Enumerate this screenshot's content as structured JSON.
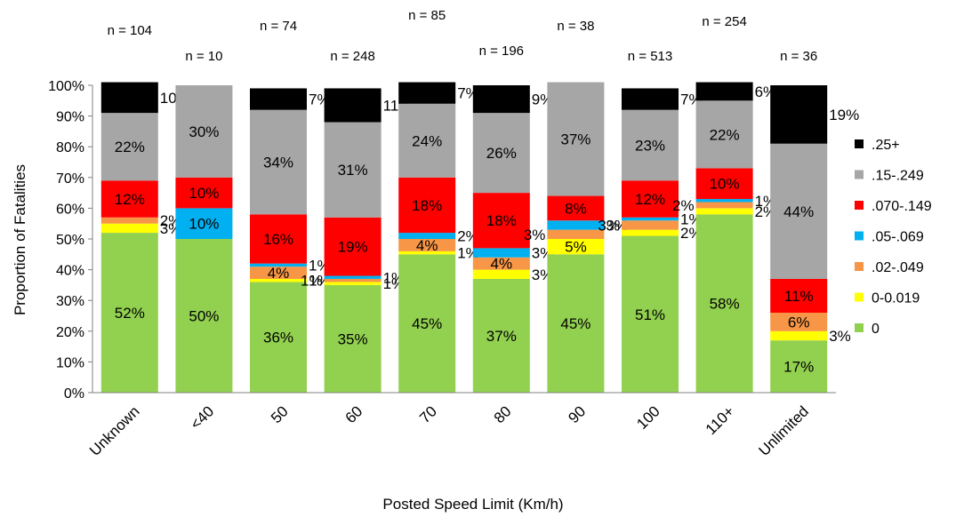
{
  "chart_data": {
    "type": "bar",
    "stacked": true,
    "xlabel": "Posted Speed Limit (Km/h)",
    "ylabel": "Proportion of Fatalities",
    "ylim": [
      0,
      100
    ],
    "y_ticks": [
      "0%",
      "10%",
      "20%",
      "30%",
      "40%",
      "50%",
      "60%",
      "70%",
      "80%",
      "90%",
      "100%"
    ],
    "grid": false,
    "legend_position": "right",
    "categories": [
      "Unknown",
      "<40",
      "50",
      "60",
      "70",
      "80",
      "90",
      "100",
      "110+",
      "Unlimited"
    ],
    "n_labels": [
      "n = 104",
      "n = 10",
      "n = 74",
      "n = 248",
      "n = 85",
      "n = 196",
      "n = 38",
      "n = 513",
      "n = 254",
      "n = 36"
    ],
    "series": [
      {
        "name": "0",
        "color": "#92d050",
        "values": [
          52,
          50,
          36,
          35,
          45,
          37,
          45,
          51,
          58,
          17
        ],
        "labels": [
          "52%",
          "50%",
          "36%",
          "35%",
          "45%",
          "37%",
          "45%",
          "51%",
          "58%",
          "17%"
        ]
      },
      {
        "name": "0-0.019",
        "color": "#ffff00",
        "values": [
          3,
          0,
          1,
          1,
          1,
          3,
          5,
          2,
          2,
          3
        ],
        "labels": [
          "3%",
          "",
          "1%",
          "1%",
          "1%",
          "3%",
          "5%",
          "2%",
          "2%",
          "3%"
        ]
      },
      {
        "name": ".02-.049",
        "color": "#f79646",
        "values": [
          2,
          0,
          4,
          1,
          4,
          4,
          3,
          3,
          2,
          6
        ],
        "labels": [
          "2%",
          "",
          "4%",
          "1%",
          "4%",
          "4%",
          "3%",
          "3%",
          "2%",
          "6%"
        ]
      },
      {
        "name": ".05-.069",
        "color": "#00b0f0",
        "values": [
          0,
          10,
          1,
          1,
          2,
          3,
          3,
          1,
          1,
          0
        ],
        "labels": [
          "",
          "10%",
          "1%",
          "1%",
          "2%",
          "3%",
          "3%",
          "1%",
          "1%",
          ""
        ]
      },
      {
        "name": ".070-.149",
        "color": "#ff0000",
        "values": [
          12,
          10,
          16,
          19,
          18,
          18,
          8,
          12,
          10,
          11
        ],
        "labels": [
          "12%",
          "10%",
          "16%",
          "19%",
          "18%",
          "18%",
          "8%",
          "12%",
          "10%",
          "11%"
        ]
      },
      {
        "name": ".15-.249",
        "color": "#a6a6a6",
        "values": [
          22,
          30,
          34,
          31,
          24,
          26,
          37,
          23,
          22,
          44
        ],
        "labels": [
          "22%",
          "30%",
          "34%",
          "31%",
          "24%",
          "26%",
          "37%",
          "23%",
          "22%",
          "44%"
        ]
      },
      {
        "name": ".25+",
        "color": "#000000",
        "values": [
          10,
          0,
          7,
          11,
          7,
          9,
          0,
          7,
          6,
          19
        ],
        "labels": [
          "10%",
          "",
          "7%",
          "11%",
          "7%",
          "9%",
          "",
          "7%",
          "6%",
          "19%"
        ]
      }
    ]
  }
}
